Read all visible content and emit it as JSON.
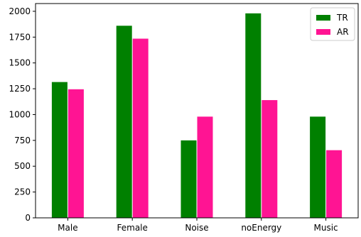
{
  "chart_data": {
    "type": "bar",
    "categories": [
      "Male",
      "Female",
      "Noise",
      "noEnergy",
      "Music"
    ],
    "series": [
      {
        "name": "TR",
        "color": "#008000",
        "values": [
          1315,
          1860,
          750,
          1980,
          980
        ]
      },
      {
        "name": "AR",
        "color": "#ff1493",
        "values": [
          1245,
          1735,
          980,
          1140,
          655
        ]
      }
    ],
    "ylim": [
      0,
      2075
    ],
    "yticks": [
      0,
      250,
      500,
      750,
      1000,
      1250,
      1500,
      1750,
      2000
    ],
    "title": "",
    "xlabel": "",
    "ylabel": "",
    "grid": false,
    "legend_position": "top-right"
  }
}
